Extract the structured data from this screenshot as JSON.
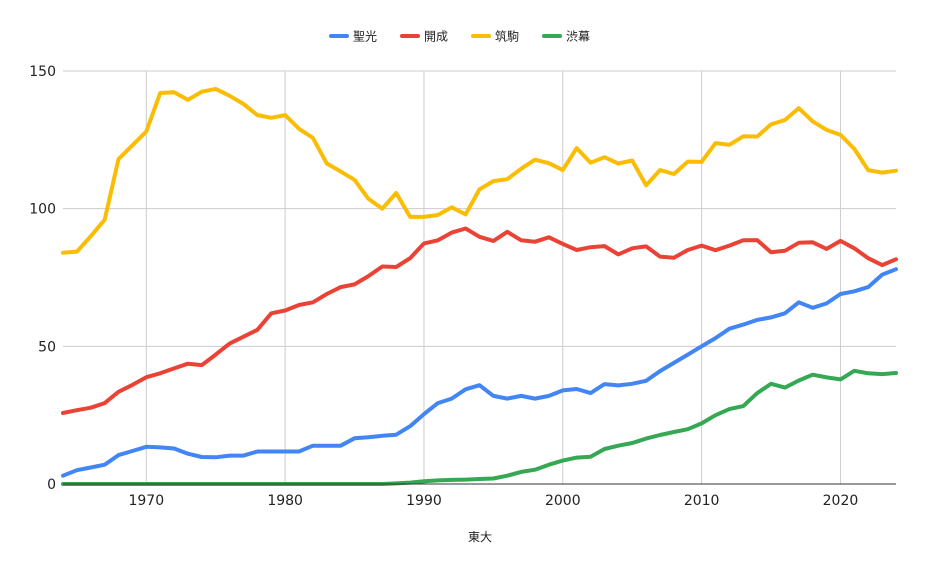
{
  "chart_data": {
    "type": "line",
    "title": "",
    "xlabel": "東大",
    "ylabel": "",
    "xlim": [
      1964,
      2024
    ],
    "ylim": [
      0,
      150
    ],
    "x_ticks": [
      1970,
      1980,
      1990,
      2000,
      2010,
      2020
    ],
    "y_ticks": [
      0,
      50,
      100,
      150
    ],
    "grid": true,
    "legend_position": "top",
    "x": [
      1964,
      1965,
      1966,
      1967,
      1968,
      1969,
      1970,
      1971,
      1972,
      1973,
      1974,
      1975,
      1976,
      1977,
      1978,
      1979,
      1980,
      1981,
      1982,
      1983,
      1984,
      1985,
      1986,
      1987,
      1988,
      1989,
      1990,
      1991,
      1992,
      1993,
      1994,
      1995,
      1996,
      1997,
      1998,
      1999,
      2000,
      2001,
      2002,
      2003,
      2004,
      2005,
      2006,
      2007,
      2008,
      2009,
      2010,
      2011,
      2012,
      2013,
      2014,
      2015,
      2016,
      2017,
      2018,
      2019,
      2020,
      2021,
      2022,
      2023,
      2024
    ],
    "series": [
      {
        "name": "聖光",
        "color": "#4285f4",
        "values": [
          3,
          5,
          6,
          7,
          10.5,
          12,
          13.5,
          13.3,
          12.9,
          11,
          9.8,
          9.7,
          10.3,
          10.3,
          11.8,
          11.8,
          11.8,
          11.8,
          13.9,
          13.9,
          13.9,
          16.6,
          17,
          17.5,
          17.9,
          21,
          25.4,
          29.4,
          31,
          34.4,
          35.9,
          32,
          31,
          32,
          31,
          32,
          34,
          34.5,
          33,
          36.3,
          35.8,
          36.4,
          37.5,
          41,
          44,
          47,
          50,
          53,
          56.4,
          57.9,
          59.6,
          60.5,
          62,
          66,
          64,
          65.6,
          69,
          70,
          71.5,
          76,
          78
        ]
      },
      {
        "name": "開成",
        "color": "#ea4335",
        "values": [
          25.8,
          26.8,
          27.7,
          29.4,
          33.5,
          36,
          38.8,
          40.2,
          42,
          43.7,
          43.2,
          47,
          51,
          53.5,
          56,
          62,
          63,
          65,
          66,
          69,
          71.5,
          72.5,
          75.5,
          79,
          78.8,
          82,
          87.4,
          88.5,
          91.3,
          92.8,
          89.8,
          88.3,
          91.6,
          88.5,
          88,
          89.6,
          87.2,
          85,
          86,
          86.4,
          83.4,
          85.6,
          86.3,
          82.6,
          82.2,
          85,
          86.6,
          84.9,
          86.6,
          88.5,
          88.6,
          84.2,
          84.7,
          87.6,
          87.8,
          85.4,
          88.3,
          85.6,
          82,
          79.5,
          81.6
        ]
      },
      {
        "name": "筑駒",
        "color": "#fbbc04",
        "values": [
          84,
          84.4,
          90,
          96,
          118,
          123,
          128,
          142,
          142.3,
          139.5,
          142.5,
          143.5,
          141,
          138,
          134,
          133,
          134,
          129,
          125.7,
          116.4,
          113.5,
          110.5,
          103.6,
          100,
          105.7,
          97,
          97,
          97.7,
          100.5,
          97.9,
          107,
          110,
          110.7,
          114.5,
          117.8,
          116.5,
          114,
          122,
          116.7,
          118.7,
          116.4,
          117.5,
          108.5,
          114,
          112.6,
          117.1,
          117,
          123.8,
          123.2,
          126.3,
          126.2,
          130.6,
          132.2,
          136.5,
          131.7,
          128.6,
          126.8,
          121.7,
          114,
          113.1,
          113.8
        ]
      },
      {
        "name": "渋幕",
        "color": "#34a853",
        "values": [
          0,
          0,
          0,
          0,
          0,
          0,
          0,
          0,
          0,
          0,
          0,
          0,
          0,
          0,
          0,
          0,
          0,
          0,
          0,
          0,
          0,
          0,
          0,
          0,
          0.2,
          0.5,
          1,
          1.3,
          1.5,
          1.6,
          1.8,
          2,
          3,
          4.4,
          5.2,
          7,
          8.5,
          9.6,
          9.9,
          12.7,
          13.9,
          14.9,
          16.5,
          17.8,
          18.9,
          19.9,
          22,
          25,
          27.2,
          28.3,
          33,
          36.4,
          35,
          37.6,
          39.7,
          38.7,
          38,
          41.1,
          40.2,
          39.9,
          40.3
        ]
      }
    ]
  }
}
